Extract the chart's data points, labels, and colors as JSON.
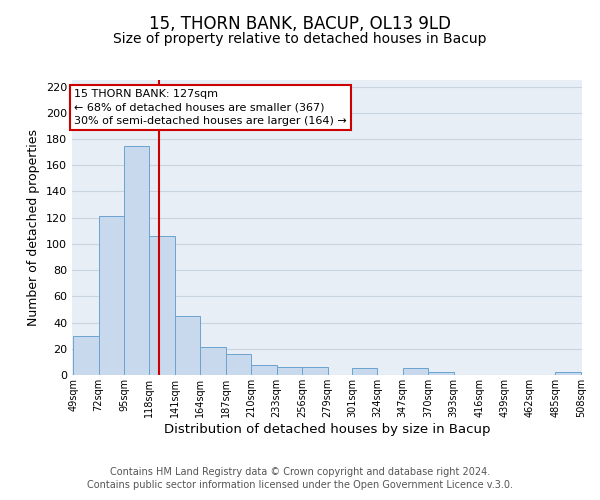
{
  "title": "15, THORN BANK, BACUP, OL13 9LD",
  "subtitle": "Size of property relative to detached houses in Bacup",
  "xlabel": "Distribution of detached houses by size in Bacup",
  "ylabel": "Number of detached properties",
  "bar_left_edges": [
    49,
    72,
    95,
    118,
    141,
    164,
    187,
    210,
    233,
    256,
    279,
    301,
    324,
    347,
    370,
    393,
    416,
    439,
    462,
    485
  ],
  "bar_heights": [
    30,
    121,
    175,
    106,
    45,
    21,
    16,
    8,
    6,
    6,
    0,
    5,
    0,
    5,
    2,
    0,
    0,
    0,
    0,
    2
  ],
  "bin_width": 23,
  "bar_color": "#c8d9ee",
  "bar_edge_color": "#6ba3cf",
  "tick_labels": [
    "49sqm",
    "72sqm",
    "95sqm",
    "118sqm",
    "141sqm",
    "164sqm",
    "187sqm",
    "210sqm",
    "233sqm",
    "256sqm",
    "279sqm",
    "301sqm",
    "324sqm",
    "347sqm",
    "370sqm",
    "393sqm",
    "416sqm",
    "439sqm",
    "462sqm",
    "485sqm",
    "508sqm"
  ],
  "vline_x": 127,
  "vline_color": "#cc0000",
  "annotation_line1": "15 THORN BANK: 127sqm",
  "annotation_line2": "← 68% of detached houses are smaller (367)",
  "annotation_line3": "30% of semi-detached houses are larger (164) →",
  "annotation_box_color": "#cc0000",
  "annotation_box_facecolor": "white",
  "ylim": [
    0,
    225
  ],
  "yticks": [
    0,
    20,
    40,
    60,
    80,
    100,
    120,
    140,
    160,
    180,
    200,
    220
  ],
  "grid_color": "#c8d4e0",
  "background_color": "#e8eef6",
  "footer_text": "Contains HM Land Registry data © Crown copyright and database right 2024.\nContains public sector information licensed under the Open Government Licence v.3.0.",
  "title_fontsize": 12,
  "subtitle_fontsize": 10,
  "xlabel_fontsize": 9.5,
  "ylabel_fontsize": 9,
  "tick_fontsize": 7,
  "footer_fontsize": 7
}
